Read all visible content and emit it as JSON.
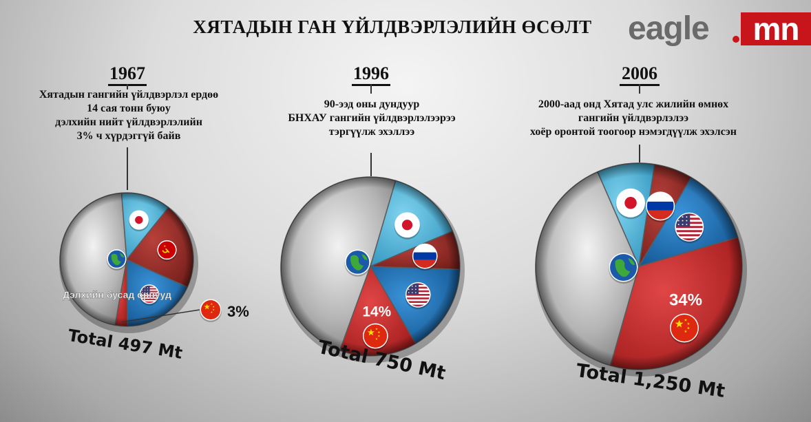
{
  "title": "ХЯТАДЫН ГАН ҮЙЛДВЭРЛЭЛИЙН ӨСӨЛТ",
  "logo": {
    "part1": "eagle",
    "part2": "mn"
  },
  "colors": {
    "china": "#c42a2a",
    "usa": "#1b6fb5",
    "russia": "#9c2a26",
    "japan": "#3fb0d8",
    "rest": "#bdbdbd"
  },
  "chart_data": [
    {
      "type": "pie",
      "year": "1967",
      "note_lines": [
        "Хятадын гангийн үйлдвэрлэл ердөө",
        "14 сая тонн буюу",
        "дэлхийн нийт үйлдвэрлэлийн",
        "3% ч хүрдэггүй байв"
      ],
      "total_label": "Total 497 Mt",
      "rest_label": "Дэлхийн бусад орнууд",
      "china_label": "3%",
      "slices": [
        {
          "key": "rest",
          "icon": "globe-icon",
          "share": 46
        },
        {
          "key": "japan",
          "icon": "japan-flag-icon",
          "share": 12
        },
        {
          "key": "russia",
          "icon": "ussr-flag-icon",
          "share": 21
        },
        {
          "key": "usa",
          "icon": "usa-flag-icon",
          "share": 18
        },
        {
          "key": "china",
          "icon": "china-flag-icon",
          "share": 3
        }
      ]
    },
    {
      "type": "pie",
      "year": "1996",
      "note_lines": [
        "90-ээд оны дундуур",
        "БНХАУ гангийн үйлдвэрлэлээрээ",
        "тэргүүлж эхэллээ"
      ],
      "total_label": "Total 750 Mt",
      "china_label": "14%",
      "slices": [
        {
          "key": "rest",
          "icon": "globe-icon",
          "share": 49
        },
        {
          "key": "japan",
          "icon": "japan-flag-icon",
          "share": 14
        },
        {
          "key": "russia",
          "icon": "russia-flag-icon",
          "share": 7
        },
        {
          "key": "usa",
          "icon": "usa-flag-icon",
          "share": 16
        },
        {
          "key": "china",
          "icon": "china-flag-icon",
          "share": 14
        }
      ]
    },
    {
      "type": "pie",
      "year": "2006",
      "note_lines": [
        "2000-аад онд Хятад улс жилийн өмнөх",
        "гангийн үйлдвэрлэлээ",
        "хоёр оронтой тоогоор нэмэгдүүлж эхэлсэн"
      ],
      "total_label": "Total 1,250 Mt",
      "china_label": "34%",
      "slices": [
        {
          "key": "rest",
          "icon": "globe-icon",
          "share": 39
        },
        {
          "key": "japan",
          "icon": "japan-flag-icon",
          "share": 9
        },
        {
          "key": "russia",
          "icon": "russia-flag-icon",
          "share": 6
        },
        {
          "key": "usa",
          "icon": "usa-flag-icon",
          "share": 12
        },
        {
          "key": "china",
          "icon": "china-flag-icon",
          "share": 34
        }
      ]
    }
  ]
}
